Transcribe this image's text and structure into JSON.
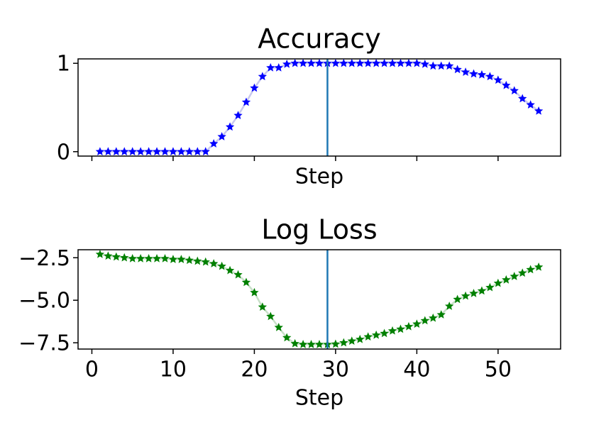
{
  "chart_data": [
    {
      "type": "line",
      "title": "Accuracy",
      "xlabel": "Step",
      "x": [
        1,
        2,
        3,
        4,
        5,
        6,
        7,
        8,
        9,
        10,
        11,
        12,
        13,
        14,
        15,
        16,
        17,
        18,
        19,
        20,
        21,
        22,
        23,
        24,
        25,
        26,
        27,
        28,
        29,
        30,
        31,
        32,
        33,
        34,
        35,
        36,
        37,
        38,
        39,
        40,
        41,
        42,
        43,
        44,
        45,
        46,
        47,
        48,
        49,
        50,
        51,
        52,
        53,
        54,
        55
      ],
      "values": [
        0,
        0,
        0,
        0,
        0,
        0,
        0,
        0,
        0,
        0,
        0,
        0,
        0,
        0,
        0.09,
        0.17,
        0.28,
        0.41,
        0.56,
        0.72,
        0.85,
        0.95,
        0.95,
        0.99,
        1,
        1,
        1,
        1,
        1,
        1,
        1,
        1,
        1,
        1,
        1,
        1,
        1,
        1,
        1,
        1,
        0.99,
        0.97,
        0.97,
        0.97,
        0.93,
        0.9,
        0.88,
        0.87,
        0.85,
        0.81,
        0.75,
        0.69,
        0.6,
        0.53,
        0.46
      ],
      "marker_color": "#0000ff",
      "line_color": "#c8c8ee",
      "xlim": [
        -1.7,
        57.7
      ],
      "ylim": [
        -0.05,
        1.05
      ],
      "xticks": [
        0,
        10,
        20,
        30,
        40,
        50
      ],
      "show_xtick_labels": false,
      "yticks": [
        0,
        1
      ],
      "vline_x": 29,
      "vline_color": "#1f77b4"
    },
    {
      "type": "line",
      "title": "Log Loss",
      "xlabel": "Step",
      "x": [
        1,
        2,
        3,
        4,
        5,
        6,
        7,
        8,
        9,
        10,
        11,
        12,
        13,
        14,
        15,
        16,
        17,
        18,
        19,
        20,
        21,
        22,
        23,
        24,
        25,
        26,
        27,
        28,
        29,
        30,
        31,
        32,
        33,
        34,
        35,
        36,
        37,
        38,
        39,
        40,
        41,
        42,
        43,
        44,
        45,
        46,
        47,
        48,
        49,
        50,
        51,
        52,
        53,
        54,
        55
      ],
      "values": [
        -2.3,
        -2.4,
        -2.45,
        -2.5,
        -2.55,
        -2.55,
        -2.55,
        -2.55,
        -2.55,
        -2.6,
        -2.6,
        -2.65,
        -2.7,
        -2.75,
        -2.85,
        -3.0,
        -3.25,
        -3.5,
        -3.95,
        -4.55,
        -5.4,
        -5.95,
        -6.6,
        -7.2,
        -7.55,
        -7.6,
        -7.6,
        -7.6,
        -7.6,
        -7.58,
        -7.5,
        -7.4,
        -7.3,
        -7.15,
        -7.05,
        -6.95,
        -6.8,
        -6.7,
        -6.55,
        -6.4,
        -6.2,
        -6.05,
        -5.85,
        -5.35,
        -4.95,
        -4.75,
        -4.6,
        -4.45,
        -4.25,
        -4.0,
        -3.8,
        -3.6,
        -3.4,
        -3.2,
        -3.05
      ],
      "marker_color": "#008000",
      "line_color": "#c8e0c8",
      "xlim": [
        -1.7,
        57.7
      ],
      "ylim": [
        -7.87,
        -2.03
      ],
      "xticks": [
        0,
        10,
        20,
        30,
        40,
        50
      ],
      "show_xtick_labels": true,
      "yticks": [
        {
          "value": -7.5,
          "label": "−7.5"
        },
        {
          "value": -5.0,
          "label": "−5.0"
        },
        {
          "value": -2.5,
          "label": "−2.5"
        }
      ],
      "vline_x": 29,
      "vline_color": "#1f77b4"
    }
  ]
}
